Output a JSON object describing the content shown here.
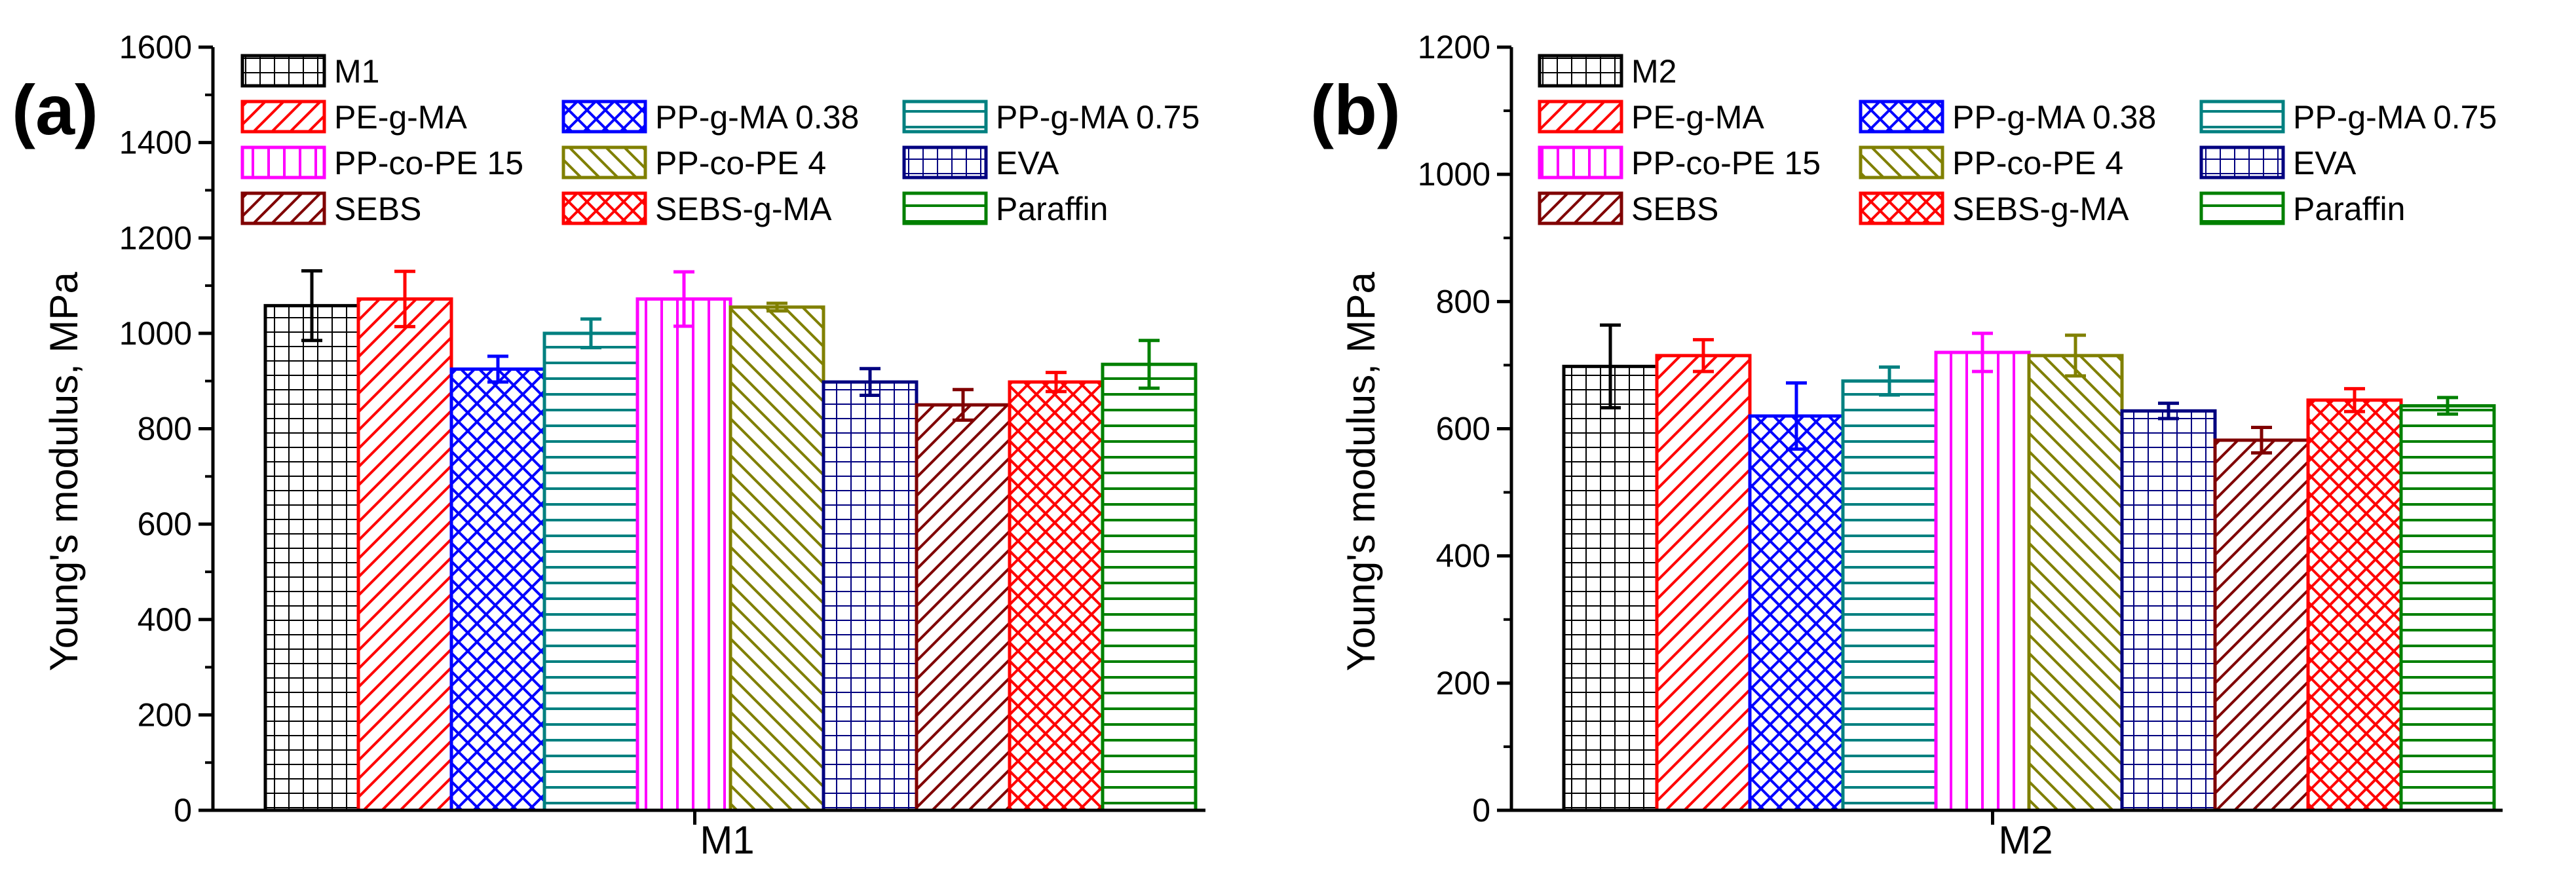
{
  "chart_data": [
    {
      "type": "bar",
      "panel_label": "(a)",
      "title": "",
      "xlabel": "M1",
      "ylabel": "Young's modulus, MPa",
      "ylim": [
        0,
        1600
      ],
      "yticks": [
        "0",
        "200",
        "400",
        "600",
        "800",
        "1000",
        "1200",
        "1400",
        "1600"
      ],
      "ytick_values": [
        0,
        200,
        400,
        600,
        800,
        1000,
        1200,
        1400,
        1600
      ],
      "categories": [
        "M1"
      ],
      "series": [
        {
          "name": "M1",
          "values": [
            1058
          ],
          "error": [
            73
          ]
        },
        {
          "name": "PE-g-MA",
          "values": [
            1072
          ],
          "error": [
            58
          ]
        },
        {
          "name": "PP-g-MA 0.38",
          "values": [
            925
          ],
          "error": [
            27
          ]
        },
        {
          "name": "PP-g-MA 0.75",
          "values": [
            1000
          ],
          "error": [
            30
          ]
        },
        {
          "name": "PP-co-PE 15",
          "values": [
            1072
          ],
          "error": [
            57
          ]
        },
        {
          "name": "PP-co-PE 4",
          "values": [
            1055
          ],
          "error": [
            8
          ]
        },
        {
          "name": "EVA",
          "values": [
            898
          ],
          "error": [
            28
          ]
        },
        {
          "name": "SEBS",
          "values": [
            850
          ],
          "error": [
            32
          ]
        },
        {
          "name": "SEBS-g-MA",
          "values": [
            898
          ],
          "error": [
            20
          ]
        },
        {
          "name": "Paraffin",
          "values": [
            935
          ],
          "error": [
            50
          ]
        }
      ],
      "legend_position": "top"
    },
    {
      "type": "bar",
      "panel_label": "(b)",
      "title": "",
      "xlabel": "M2",
      "ylabel": "Young's modulus, MPa",
      "ylim": [
        0,
        1200
      ],
      "yticks": [
        "0",
        "200",
        "400",
        "600",
        "800",
        "1000",
        "1200"
      ],
      "ytick_values": [
        0,
        200,
        400,
        600,
        800,
        1000,
        1200
      ],
      "categories": [
        "M2"
      ],
      "series": [
        {
          "name": "M2",
          "values": [
            698
          ],
          "error": [
            65
          ]
        },
        {
          "name": "PE-g-MA",
          "values": [
            715
          ],
          "error": [
            25
          ]
        },
        {
          "name": "PP-g-MA 0.38",
          "values": [
            620
          ],
          "error": [
            52
          ]
        },
        {
          "name": "PP-g-MA 0.75",
          "values": [
            675
          ],
          "error": [
            22
          ]
        },
        {
          "name": "PP-co-PE 15",
          "values": [
            720
          ],
          "error": [
            30
          ]
        },
        {
          "name": "PP-co-PE 4",
          "values": [
            715
          ],
          "error": [
            32
          ]
        },
        {
          "name": "EVA",
          "values": [
            628
          ],
          "error": [
            12
          ]
        },
        {
          "name": "SEBS",
          "values": [
            582
          ],
          "error": [
            20
          ]
        },
        {
          "name": "SEBS-g-MA",
          "values": [
            645
          ],
          "error": [
            18
          ]
        },
        {
          "name": "Paraffin",
          "values": [
            636
          ],
          "error": [
            13
          ]
        }
      ],
      "legend_position": "top"
    }
  ],
  "series_style": [
    {
      "color": "#000000",
      "pattern": "grid"
    },
    {
      "color": "#ff0000",
      "pattern": "diag-up"
    },
    {
      "color": "#0000ff",
      "pattern": "crosshatch"
    },
    {
      "color": "#008080",
      "pattern": "horizontal"
    },
    {
      "color": "#ff00ff",
      "pattern": "vertical"
    },
    {
      "color": "#808000",
      "pattern": "diag-down"
    },
    {
      "color": "#000080",
      "pattern": "grid"
    },
    {
      "color": "#800000",
      "pattern": "diag-up"
    },
    {
      "color": "#ff0000",
      "pattern": "crosshatch"
    },
    {
      "color": "#008000",
      "pattern": "horizontal"
    }
  ]
}
